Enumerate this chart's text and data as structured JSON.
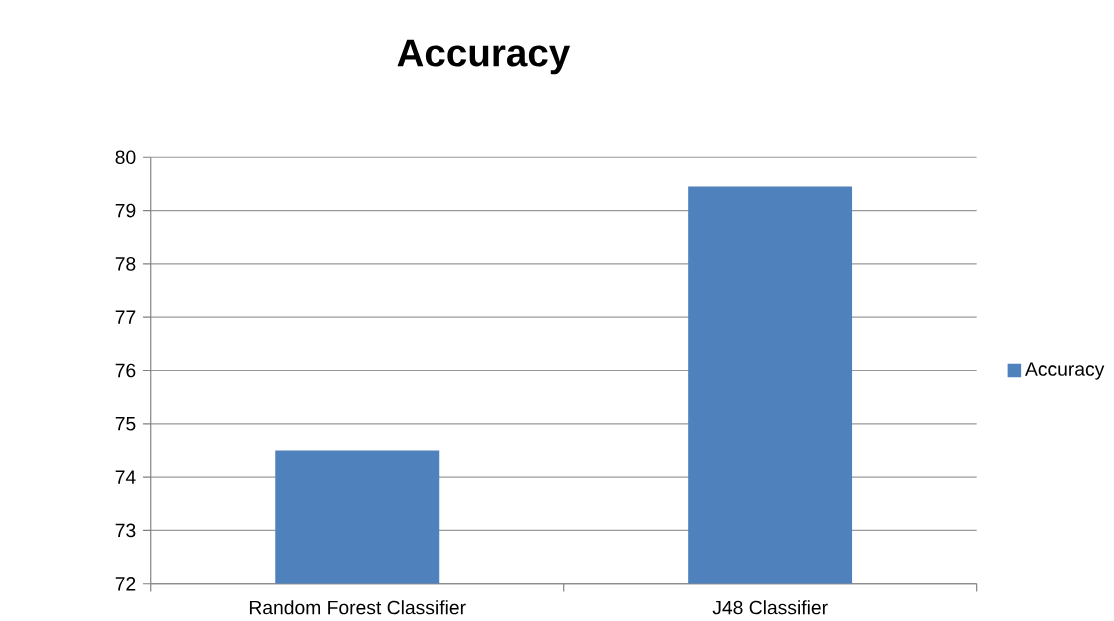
{
  "chart_data": {
    "type": "bar",
    "title": "Accuracy",
    "categories": [
      "Random Forest Classifier",
      "J48 Classifier"
    ],
    "series": [
      {
        "name": "Accuracy",
        "color": "#4f81bd",
        "values": [
          74.5,
          79.45
        ]
      }
    ],
    "ylim": [
      72,
      80
    ],
    "yticks": [
      72,
      73,
      74,
      75,
      76,
      77,
      78,
      79,
      80
    ],
    "grid": "y",
    "legend": "right"
  }
}
